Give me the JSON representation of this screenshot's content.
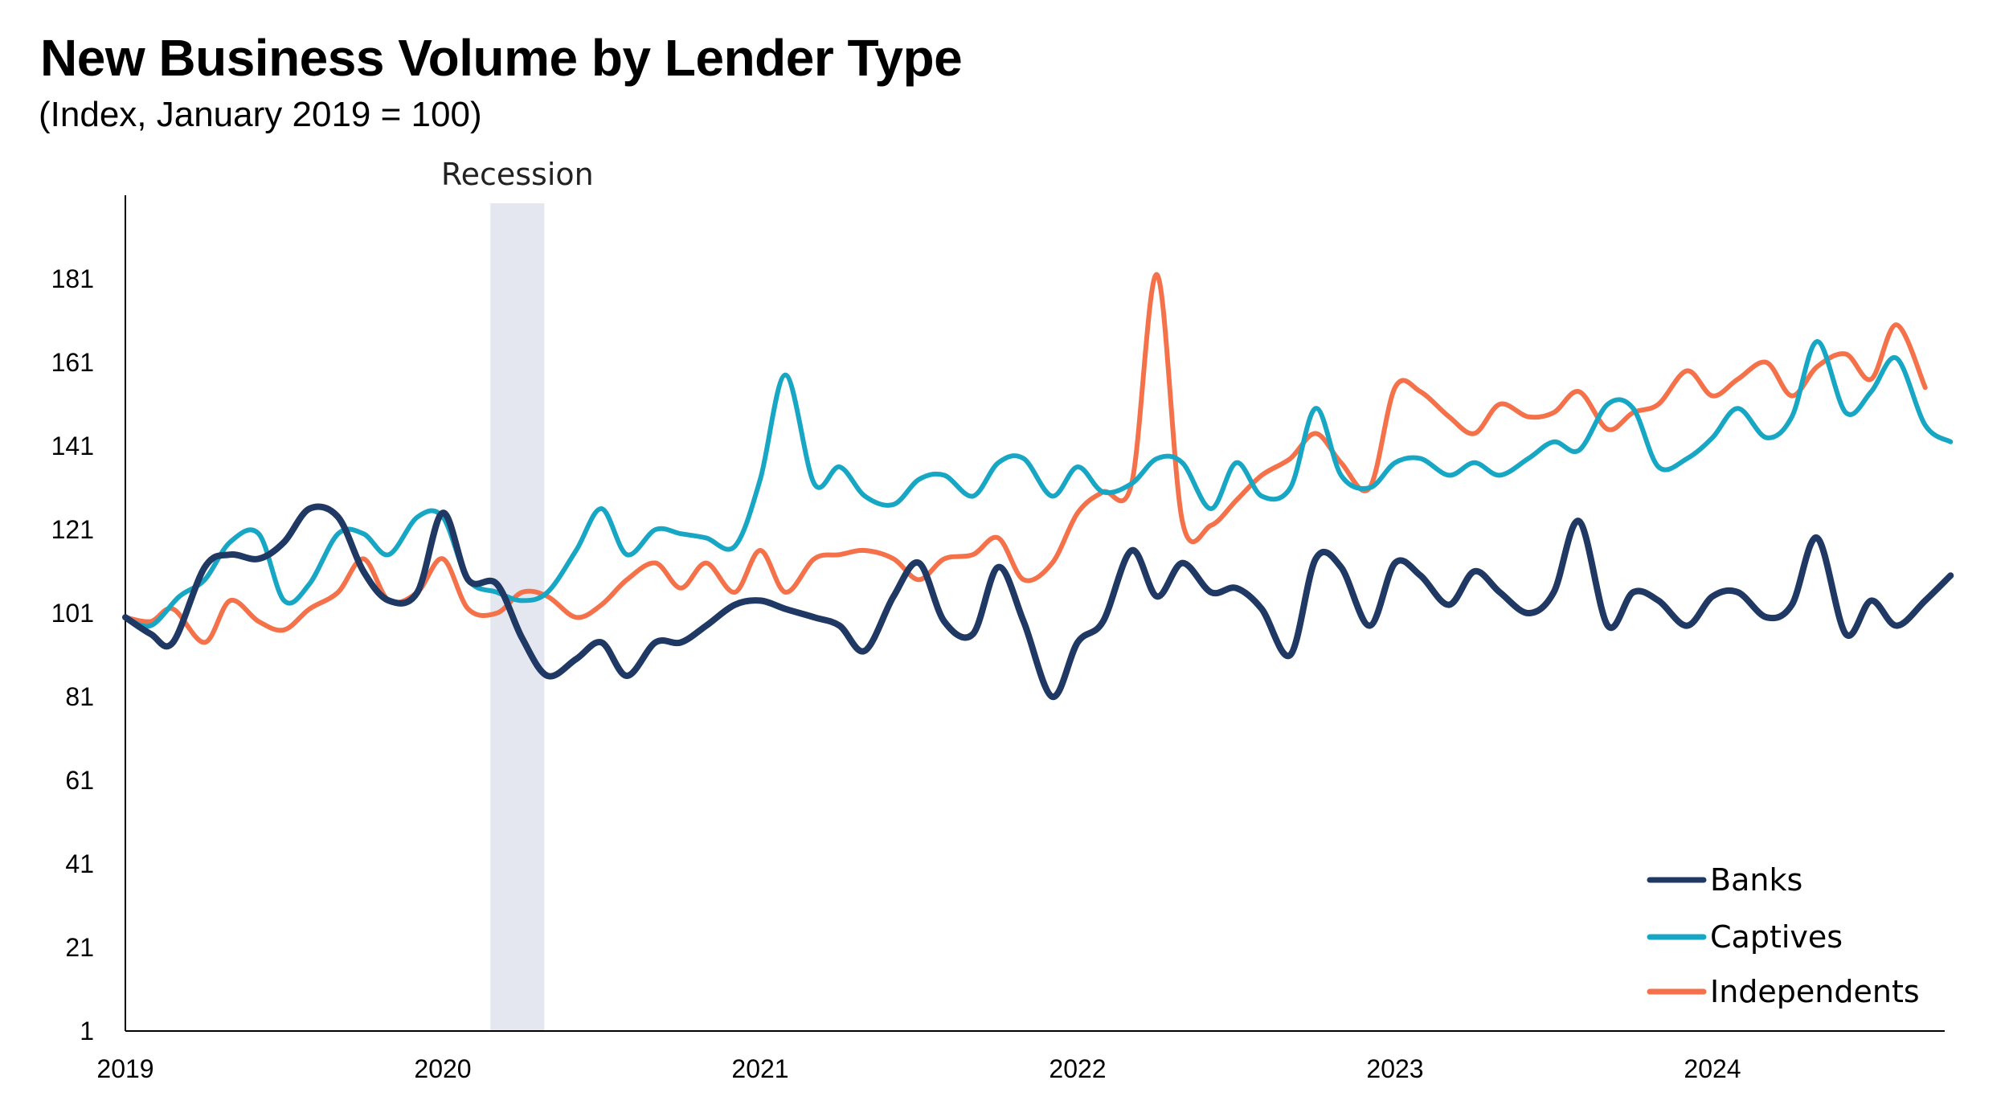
{
  "chart_data": {
    "type": "line",
    "title": "New Business Volume by Lender Type",
    "subtitle": "(Index, January 2019 = 100)",
    "xlabel": "",
    "ylabel": "",
    "ylim": [
      1,
      201
    ],
    "yticks": [
      1,
      21,
      41,
      61,
      81,
      101,
      121,
      141,
      161,
      181
    ],
    "xlim": [
      2019.0,
      2024.83
    ],
    "xticks": [
      "2019",
      "2020",
      "2021",
      "2022",
      "2023",
      "2024"
    ],
    "grid": false,
    "legend_position": "bottom-right",
    "recession": {
      "label": "Recession",
      "start": 2020.15,
      "end": 2020.32
    },
    "series": [
      {
        "name": "Banks",
        "color": "#1f3864",
        "points": [
          [
            2019.0,
            100
          ],
          [
            2019.08,
            96
          ],
          [
            2019.15,
            94
          ],
          [
            2019.25,
            112
          ],
          [
            2019.33,
            115
          ],
          [
            2019.42,
            114
          ],
          [
            2019.5,
            118
          ],
          [
            2019.58,
            126
          ],
          [
            2019.67,
            124
          ],
          [
            2019.75,
            111
          ],
          [
            2019.83,
            104
          ],
          [
            2019.92,
            106
          ],
          [
            2020.0,
            125
          ],
          [
            2020.08,
            109
          ],
          [
            2020.17,
            108
          ],
          [
            2020.25,
            95
          ],
          [
            2020.33,
            86
          ],
          [
            2020.42,
            90
          ],
          [
            2020.5,
            94
          ],
          [
            2020.58,
            86
          ],
          [
            2020.67,
            94
          ],
          [
            2020.75,
            94
          ],
          [
            2020.83,
            98
          ],
          [
            2020.92,
            103
          ],
          [
            2021.0,
            104
          ],
          [
            2021.08,
            102
          ],
          [
            2021.17,
            100
          ],
          [
            2021.25,
            98
          ],
          [
            2021.33,
            92
          ],
          [
            2021.42,
            105
          ],
          [
            2021.5,
            113
          ],
          [
            2021.58,
            99
          ],
          [
            2021.67,
            96
          ],
          [
            2021.75,
            112
          ],
          [
            2021.83,
            99
          ],
          [
            2021.92,
            81
          ],
          [
            2022.0,
            94
          ],
          [
            2022.08,
            99
          ],
          [
            2022.17,
            116
          ],
          [
            2022.25,
            105
          ],
          [
            2022.33,
            113
          ],
          [
            2022.42,
            106
          ],
          [
            2022.5,
            107
          ],
          [
            2022.58,
            102
          ],
          [
            2022.67,
            91
          ],
          [
            2022.75,
            114
          ],
          [
            2022.83,
            112
          ],
          [
            2022.92,
            98
          ],
          [
            2023.0,
            113
          ],
          [
            2023.08,
            110
          ],
          [
            2023.17,
            103
          ],
          [
            2023.25,
            111
          ],
          [
            2023.33,
            106
          ],
          [
            2023.42,
            101
          ],
          [
            2023.5,
            106
          ],
          [
            2023.58,
            123
          ],
          [
            2023.67,
            98
          ],
          [
            2023.75,
            106
          ],
          [
            2023.83,
            104
          ],
          [
            2023.92,
            98
          ],
          [
            2024.0,
            105
          ],
          [
            2024.08,
            106
          ],
          [
            2024.17,
            100
          ],
          [
            2024.25,
            103
          ],
          [
            2024.33,
            119
          ],
          [
            2024.42,
            96
          ],
          [
            2024.5,
            104
          ],
          [
            2024.58,
            98
          ],
          [
            2024.67,
            104
          ],
          [
            2024.75,
            110
          ]
        ]
      },
      {
        "name": "Captives",
        "color": "#17a7c5",
        "points": [
          [
            2019.0,
            100
          ],
          [
            2019.08,
            98
          ],
          [
            2019.17,
            105
          ],
          [
            2019.25,
            109
          ],
          [
            2019.33,
            118
          ],
          [
            2019.42,
            120
          ],
          [
            2019.5,
            104
          ],
          [
            2019.58,
            108
          ],
          [
            2019.67,
            120
          ],
          [
            2019.75,
            120
          ],
          [
            2019.83,
            115
          ],
          [
            2019.92,
            124
          ],
          [
            2020.0,
            124
          ],
          [
            2020.08,
            109
          ],
          [
            2020.17,
            106
          ],
          [
            2020.25,
            104
          ],
          [
            2020.33,
            106
          ],
          [
            2020.42,
            116
          ],
          [
            2020.5,
            126
          ],
          [
            2020.58,
            115
          ],
          [
            2020.67,
            121
          ],
          [
            2020.75,
            120
          ],
          [
            2020.83,
            119
          ],
          [
            2020.92,
            117
          ],
          [
            2021.0,
            133
          ],
          [
            2021.08,
            158
          ],
          [
            2021.17,
            132
          ],
          [
            2021.25,
            136
          ],
          [
            2021.33,
            129
          ],
          [
            2021.42,
            127
          ],
          [
            2021.5,
            133
          ],
          [
            2021.58,
            134
          ],
          [
            2021.67,
            129
          ],
          [
            2021.75,
            137
          ],
          [
            2021.83,
            138
          ],
          [
            2021.92,
            129
          ],
          [
            2022.0,
            136
          ],
          [
            2022.08,
            130
          ],
          [
            2022.17,
            132
          ],
          [
            2022.25,
            138
          ],
          [
            2022.33,
            137
          ],
          [
            2022.42,
            126
          ],
          [
            2022.5,
            137
          ],
          [
            2022.58,
            129
          ],
          [
            2022.67,
            131
          ],
          [
            2022.75,
            150
          ],
          [
            2022.83,
            134
          ],
          [
            2022.92,
            131
          ],
          [
            2023.0,
            137
          ],
          [
            2023.08,
            138
          ],
          [
            2023.17,
            134
          ],
          [
            2023.25,
            137
          ],
          [
            2023.33,
            134
          ],
          [
            2023.42,
            138
          ],
          [
            2023.5,
            142
          ],
          [
            2023.58,
            140
          ],
          [
            2023.67,
            151
          ],
          [
            2023.75,
            150
          ],
          [
            2023.83,
            136
          ],
          [
            2023.92,
            138
          ],
          [
            2024.0,
            143
          ],
          [
            2024.08,
            150
          ],
          [
            2024.17,
            143
          ],
          [
            2024.25,
            148
          ],
          [
            2024.33,
            166
          ],
          [
            2024.42,
            149
          ],
          [
            2024.5,
            154
          ],
          [
            2024.58,
            162
          ],
          [
            2024.67,
            146
          ],
          [
            2024.75,
            142
          ]
        ]
      },
      {
        "name": "Independents",
        "color": "#f4714a",
        "points": [
          [
            2019.0,
            100
          ],
          [
            2019.08,
            99
          ],
          [
            2019.15,
            102
          ],
          [
            2019.25,
            94
          ],
          [
            2019.33,
            104
          ],
          [
            2019.42,
            99
          ],
          [
            2019.5,
            97
          ],
          [
            2019.58,
            102
          ],
          [
            2019.67,
            106
          ],
          [
            2019.75,
            114
          ],
          [
            2019.83,
            104
          ],
          [
            2019.92,
            106
          ],
          [
            2020.0,
            114
          ],
          [
            2020.08,
            102
          ],
          [
            2020.17,
            101
          ],
          [
            2020.25,
            106
          ],
          [
            2020.33,
            105
          ],
          [
            2020.42,
            100
          ],
          [
            2020.5,
            103
          ],
          [
            2020.58,
            109
          ],
          [
            2020.67,
            113
          ],
          [
            2020.75,
            107
          ],
          [
            2020.83,
            113
          ],
          [
            2020.92,
            106
          ],
          [
            2021.0,
            116
          ],
          [
            2021.08,
            106
          ],
          [
            2021.17,
            114
          ],
          [
            2021.25,
            115
          ],
          [
            2021.33,
            116
          ],
          [
            2021.42,
            114
          ],
          [
            2021.5,
            109
          ],
          [
            2021.58,
            114
          ],
          [
            2021.67,
            115
          ],
          [
            2021.75,
            119
          ],
          [
            2021.83,
            109
          ],
          [
            2021.92,
            113
          ],
          [
            2022.0,
            125
          ],
          [
            2022.08,
            130
          ],
          [
            2022.17,
            132
          ],
          [
            2022.25,
            182
          ],
          [
            2022.33,
            123
          ],
          [
            2022.42,
            122
          ],
          [
            2022.5,
            128
          ],
          [
            2022.58,
            134
          ],
          [
            2022.67,
            138
          ],
          [
            2022.75,
            144
          ],
          [
            2022.83,
            137
          ],
          [
            2022.92,
            131
          ],
          [
            2023.0,
            155
          ],
          [
            2023.08,
            154
          ],
          [
            2023.17,
            148
          ],
          [
            2023.25,
            144
          ],
          [
            2023.33,
            151
          ],
          [
            2023.42,
            148
          ],
          [
            2023.5,
            149
          ],
          [
            2023.58,
            154
          ],
          [
            2023.67,
            145
          ],
          [
            2023.75,
            149
          ],
          [
            2023.83,
            151
          ],
          [
            2023.92,
            159
          ],
          [
            2024.0,
            153
          ],
          [
            2024.08,
            157
          ],
          [
            2024.17,
            161
          ],
          [
            2024.25,
            153
          ],
          [
            2024.33,
            160
          ],
          [
            2024.42,
            163
          ],
          [
            2024.5,
            157
          ],
          [
            2024.58,
            170
          ],
          [
            2024.67,
            155
          ]
        ]
      }
    ]
  }
}
